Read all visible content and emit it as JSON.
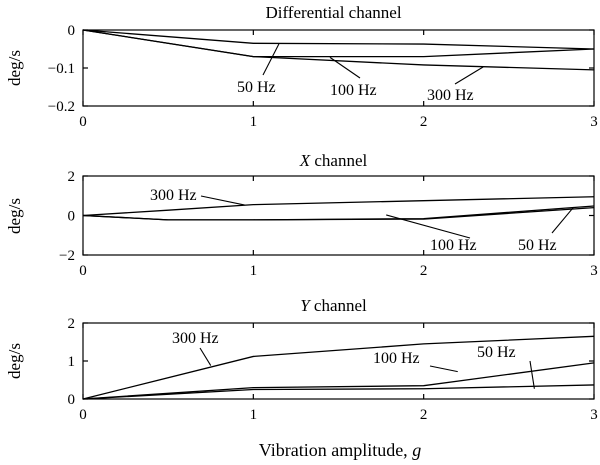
{
  "xlabel": "Vibration amplitude, g",
  "chart_data": [
    {
      "type": "line",
      "title": "Differential channel",
      "ylabel": "deg/s",
      "x": [
        0,
        1,
        2,
        3
      ],
      "xticks": [
        "0",
        "1",
        "2",
        "3"
      ],
      "ylim": [
        -0.2,
        0
      ],
      "yticks": [
        "0",
        "−0.1",
        "−0.2"
      ],
      "yticks_values": [
        0,
        -0.1,
        -0.2
      ],
      "series": [
        {
          "name": "50 Hz",
          "values": [
            0,
            -0.035,
            -0.037,
            -0.05
          ]
        },
        {
          "name": "100 Hz",
          "values": [
            0,
            -0.07,
            -0.07,
            -0.05
          ]
        },
        {
          "name": "300 Hz",
          "values": [
            0,
            -0.07,
            -0.092,
            -0.105
          ]
        }
      ]
    },
    {
      "type": "line",
      "title": "X channel",
      "title_italic_part": "X",
      "title_rest": " channel",
      "ylabel": "deg/s",
      "x": [
        0,
        0.5,
        1,
        2,
        3
      ],
      "xticks": [
        "0",
        "1",
        "2",
        "3"
      ],
      "ylim": [
        -2,
        2
      ],
      "yticks": [
        "2",
        "0",
        "−2"
      ],
      "yticks_values": [
        2,
        0,
        -2
      ],
      "series": [
        {
          "name": "300 Hz",
          "values": [
            0,
            0.27,
            0.55,
            0.75,
            0.95
          ]
        },
        {
          "name": "100 Hz",
          "values": [
            0,
            -0.22,
            -0.22,
            -0.18,
            0.4
          ]
        },
        {
          "name": "50 Hz",
          "values": [
            0,
            -0.22,
            -0.22,
            -0.16,
            0.48
          ]
        }
      ]
    },
    {
      "type": "line",
      "title": "Y channel",
      "title_italic_part": "Y",
      "title_rest": " channel",
      "ylabel": "deg/s",
      "x": [
        0,
        1,
        2,
        3
      ],
      "xticks": [
        "0",
        "1",
        "2",
        "3"
      ],
      "ylim": [
        0,
        2
      ],
      "yticks": [
        "2",
        "1",
        "0"
      ],
      "yticks_values": [
        2,
        1,
        0
      ],
      "series": [
        {
          "name": "300 Hz",
          "values": [
            0,
            1.12,
            1.45,
            1.65
          ]
        },
        {
          "name": "100 Hz",
          "values": [
            0,
            0.3,
            0.35,
            0.95
          ]
        },
        {
          "name": "50 Hz",
          "values": [
            0,
            0.25,
            0.27,
            0.37
          ]
        }
      ]
    }
  ]
}
